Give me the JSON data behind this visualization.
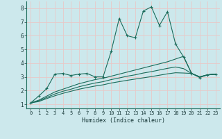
{
  "xlabel": "Humidex (Indice chaleur)",
  "background_color": "#cce8ec",
  "grid_color": "#e8c8c8",
  "line_color": "#1a6b5a",
  "xlim": [
    -0.5,
    23.5
  ],
  "ylim": [
    0.7,
    8.5
  ],
  "xticks": [
    0,
    1,
    2,
    3,
    4,
    5,
    6,
    7,
    8,
    9,
    10,
    11,
    12,
    13,
    14,
    15,
    16,
    17,
    18,
    19,
    20,
    21,
    22,
    23
  ],
  "yticks": [
    1,
    2,
    3,
    4,
    5,
    6,
    7,
    8
  ],
  "line1_x": [
    0,
    1,
    2,
    3,
    4,
    5,
    6,
    7,
    8,
    9,
    10,
    11,
    12,
    13,
    14,
    15,
    16,
    17,
    18,
    19,
    20,
    21,
    22,
    23
  ],
  "line1_y": [
    1.1,
    1.6,
    2.15,
    3.2,
    3.25,
    3.1,
    3.2,
    3.25,
    3.0,
    3.0,
    4.85,
    7.25,
    6.0,
    5.85,
    7.8,
    8.1,
    6.75,
    7.75,
    5.4,
    4.45,
    3.25,
    2.95,
    3.15,
    3.2
  ],
  "line2_x": [
    0,
    1,
    2,
    3,
    4,
    5,
    6,
    7,
    8,
    9,
    10,
    11,
    12,
    13,
    14,
    15,
    16,
    17,
    18,
    19,
    20,
    21,
    22,
    23
  ],
  "line2_y": [
    1.1,
    1.3,
    1.6,
    1.9,
    2.1,
    2.3,
    2.5,
    2.65,
    2.8,
    2.9,
    3.05,
    3.2,
    3.35,
    3.5,
    3.65,
    3.8,
    3.95,
    4.1,
    4.3,
    4.5,
    3.25,
    3.0,
    3.15,
    3.2
  ],
  "line3_x": [
    0,
    1,
    2,
    3,
    4,
    5,
    6,
    7,
    8,
    9,
    10,
    11,
    12,
    13,
    14,
    15,
    16,
    17,
    18,
    19,
    20,
    21,
    22,
    23
  ],
  "line3_y": [
    1.1,
    1.25,
    1.5,
    1.75,
    1.95,
    2.1,
    2.28,
    2.42,
    2.55,
    2.65,
    2.8,
    2.92,
    3.05,
    3.15,
    3.28,
    3.38,
    3.5,
    3.62,
    3.72,
    3.6,
    3.25,
    3.0,
    3.15,
    3.2
  ],
  "line4_x": [
    0,
    1,
    2,
    3,
    4,
    5,
    6,
    7,
    8,
    9,
    10,
    11,
    12,
    13,
    14,
    15,
    16,
    17,
    18,
    19,
    20,
    21,
    22,
    23
  ],
  "line4_y": [
    1.1,
    1.2,
    1.42,
    1.62,
    1.8,
    1.95,
    2.1,
    2.22,
    2.33,
    2.42,
    2.55,
    2.65,
    2.75,
    2.84,
    2.93,
    3.02,
    3.12,
    3.22,
    3.3,
    3.28,
    3.25,
    3.0,
    3.15,
    3.2
  ]
}
